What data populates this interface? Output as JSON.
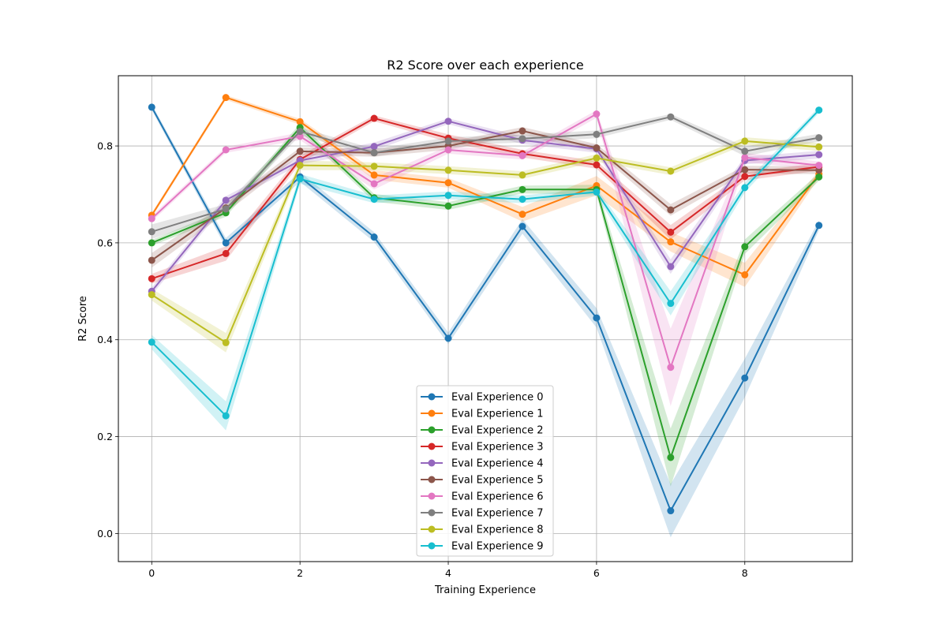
{
  "chart_data": {
    "type": "line",
    "title": "R2 Score over each experience",
    "xlabel": "Training Experience",
    "ylabel": "R2 Score",
    "xlim": [
      -0.45,
      9.45
    ],
    "ylim": [
      -0.058,
      0.945
    ],
    "xticks": [
      0,
      2,
      4,
      6,
      8
    ],
    "xtick_labels": [
      "0",
      "2",
      "4",
      "6",
      "8"
    ],
    "yticks": [
      0.0,
      0.2,
      0.4,
      0.6,
      0.8
    ],
    "ytick_labels": [
      "0.0",
      "0.2",
      "0.4",
      "0.6",
      "0.8"
    ],
    "grid": true,
    "legend_position": "lower center",
    "x": [
      0,
      1,
      2,
      3,
      4,
      5,
      6,
      7,
      8,
      9
    ],
    "series": [
      {
        "name": "Eval Experience 0",
        "color": "#1f77b4",
        "values": [
          0.88,
          0.6,
          0.736,
          0.612,
          0.403,
          0.634,
          0.445,
          0.047,
          0.321,
          0.636
        ],
        "band": [
          0.006,
          0.01,
          0.01,
          0.01,
          0.012,
          0.015,
          0.02,
          0.055,
          0.04,
          0.01
        ]
      },
      {
        "name": "Eval Experience 1",
        "color": "#ff7f0e",
        "values": [
          0.657,
          0.9,
          0.85,
          0.74,
          0.724,
          0.659,
          0.718,
          0.602,
          0.534,
          0.742
        ],
        "band": [
          0.005,
          0.005,
          0.006,
          0.01,
          0.01,
          0.015,
          0.02,
          0.02,
          0.025,
          0.008
        ]
      },
      {
        "name": "Eval Experience 2",
        "color": "#2ca02c",
        "values": [
          0.6,
          0.662,
          0.838,
          0.693,
          0.676,
          0.71,
          0.71,
          0.157,
          0.592,
          0.736
        ],
        "band": [
          0.006,
          0.008,
          0.008,
          0.008,
          0.008,
          0.008,
          0.01,
          0.06,
          0.015,
          0.008
        ]
      },
      {
        "name": "Eval Experience 3",
        "color": "#d62728",
        "values": [
          0.526,
          0.578,
          0.772,
          0.857,
          0.816,
          0.784,
          0.761,
          0.622,
          0.737,
          0.757
        ],
        "band": [
          0.01,
          0.015,
          0.008,
          0.006,
          0.008,
          0.008,
          0.008,
          0.015,
          0.008,
          0.008
        ]
      },
      {
        "name": "Eval Experience 4",
        "color": "#9467bd",
        "values": [
          0.5,
          0.688,
          0.77,
          0.799,
          0.851,
          0.812,
          0.794,
          0.551,
          0.77,
          0.782
        ],
        "band": [
          0.008,
          0.008,
          0.008,
          0.008,
          0.006,
          0.008,
          0.008,
          0.015,
          0.008,
          0.008
        ]
      },
      {
        "name": "Eval Experience 5",
        "color": "#8c564b",
        "values": [
          0.564,
          0.672,
          0.789,
          0.786,
          0.8,
          0.831,
          0.796,
          0.668,
          0.751,
          0.75
        ],
        "band": [
          0.015,
          0.01,
          0.008,
          0.008,
          0.008,
          0.008,
          0.008,
          0.012,
          0.008,
          0.008
        ]
      },
      {
        "name": "Eval Experience 6",
        "color": "#e377c2",
        "values": [
          0.65,
          0.792,
          0.82,
          0.722,
          0.792,
          0.78,
          0.866,
          0.343,
          0.776,
          0.76
        ],
        "band": [
          0.006,
          0.006,
          0.008,
          0.012,
          0.008,
          0.008,
          0.008,
          0.08,
          0.01,
          0.008
        ]
      },
      {
        "name": "Eval Experience 7",
        "color": "#7f7f7f",
        "values": [
          0.623,
          0.67,
          0.83,
          0.786,
          0.81,
          0.815,
          0.824,
          0.86,
          0.789,
          0.817
        ],
        "band": [
          0.015,
          0.01,
          0.008,
          0.008,
          0.008,
          0.008,
          0.008,
          0.006,
          0.01,
          0.008
        ]
      },
      {
        "name": "Eval Experience 8",
        "color": "#bcbd22",
        "values": [
          0.493,
          0.394,
          0.76,
          0.758,
          0.75,
          0.74,
          0.775,
          0.748,
          0.81,
          0.798
        ],
        "band": [
          0.012,
          0.02,
          0.01,
          0.008,
          0.008,
          0.008,
          0.008,
          0.008,
          0.008,
          0.008
        ]
      },
      {
        "name": "Eval Experience 9",
        "color": "#17becf",
        "values": [
          0.395,
          0.243,
          0.732,
          0.69,
          0.698,
          0.69,
          0.705,
          0.475,
          0.714,
          0.874
        ],
        "band": [
          0.015,
          0.03,
          0.01,
          0.008,
          0.008,
          0.008,
          0.008,
          0.025,
          0.01,
          0.006
        ]
      }
    ]
  }
}
